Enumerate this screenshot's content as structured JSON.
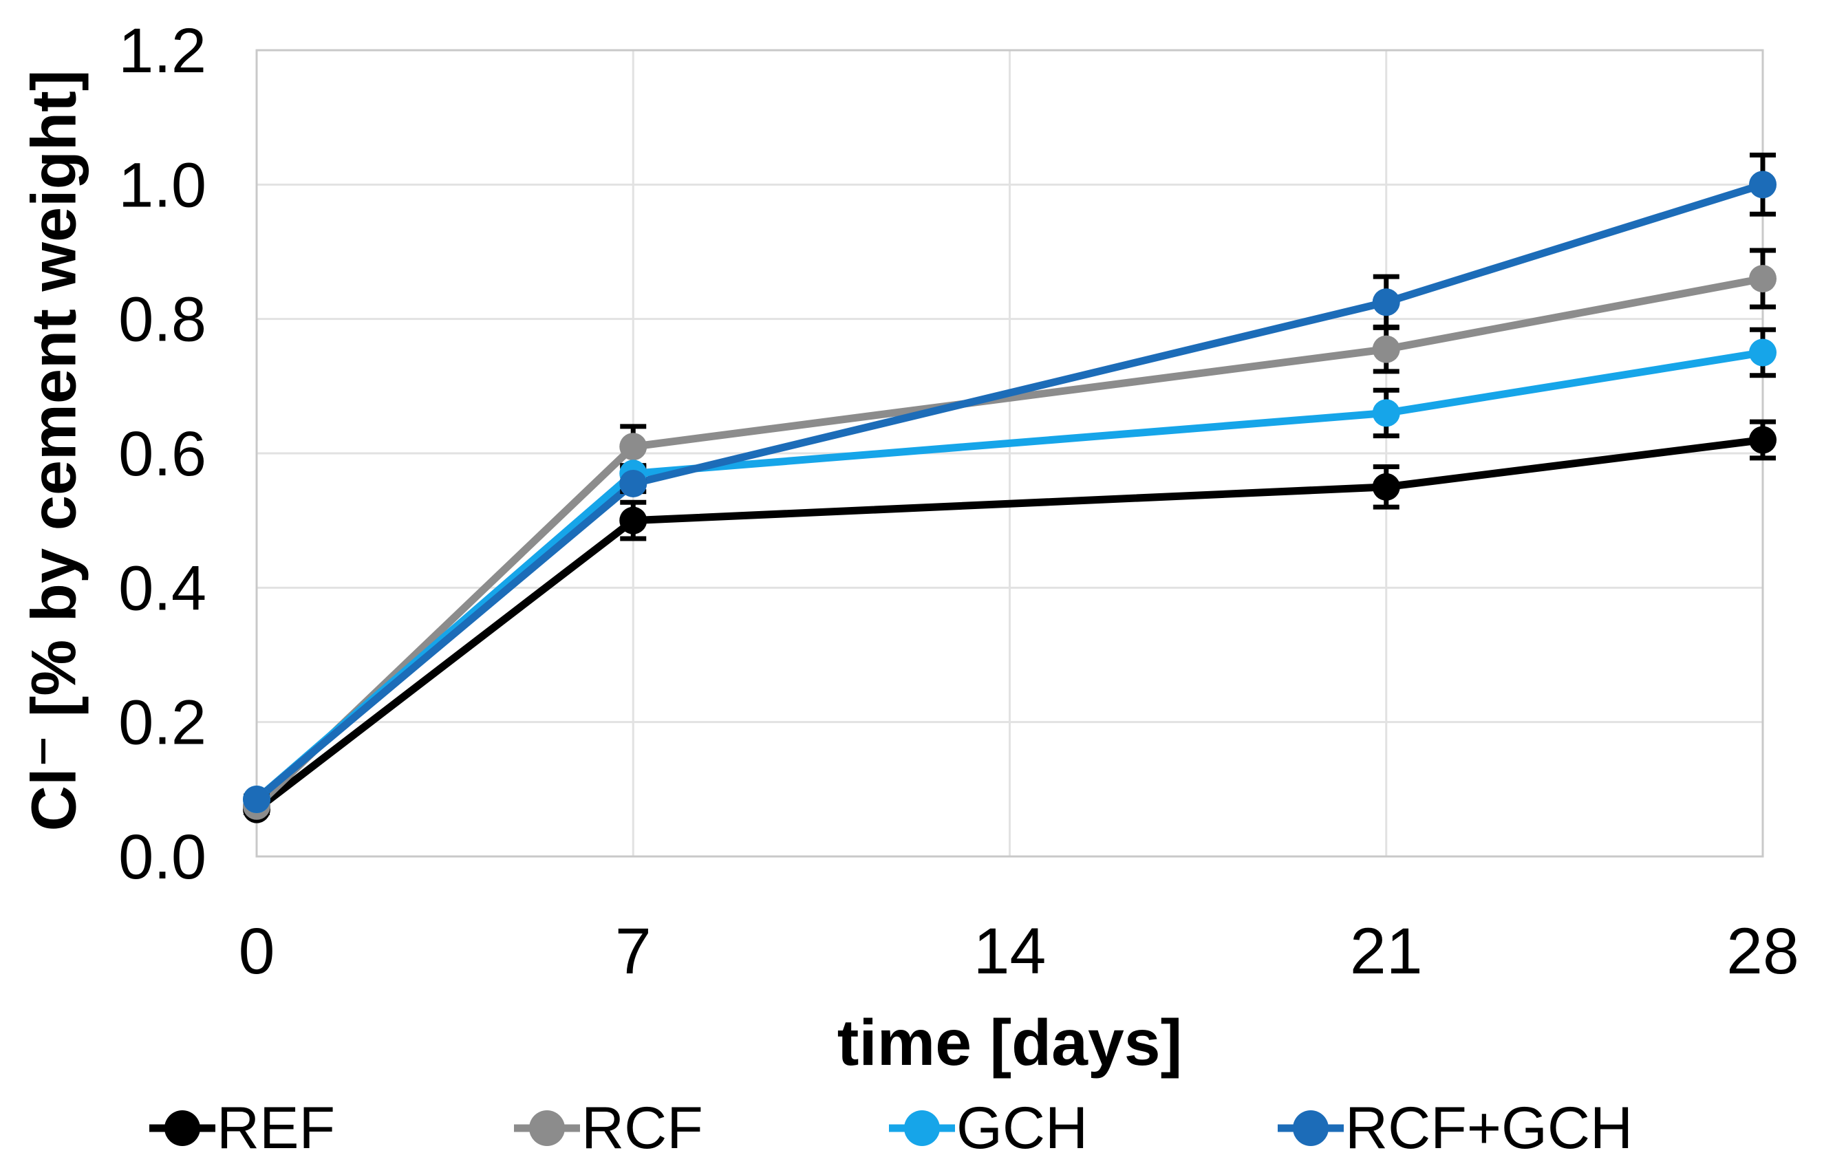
{
  "chart_data": {
    "type": "line",
    "title": "",
    "xlabel": "time [days]",
    "ylabel": "Cl⁻ [% by cement weight]",
    "xlim": [
      0,
      28
    ],
    "ylim": [
      0.0,
      1.2
    ],
    "x_ticks": [
      0,
      7,
      14,
      21,
      28
    ],
    "y_ticks": [
      0.0,
      0.2,
      0.4,
      0.6,
      0.8,
      1.0,
      1.2
    ],
    "grid": true,
    "legend_position": "bottom",
    "x": [
      0,
      7,
      21,
      28
    ],
    "series": [
      {
        "name": "REF",
        "color": "#000000",
        "values": [
          0.07,
          0.5,
          0.55,
          0.62
        ],
        "errors": [
          0.005,
          0.027,
          0.03,
          0.027
        ]
      },
      {
        "name": "RCF",
        "color": "#8c8c8c",
        "values": [
          0.075,
          0.61,
          0.755,
          0.86
        ],
        "errors": [
          0.005,
          0.03,
          0.033,
          0.042
        ]
      },
      {
        "name": "GCH",
        "color": "#16a5e9",
        "values": [
          0.085,
          0.57,
          0.66,
          0.75
        ],
        "errors": [
          0.005,
          0.012,
          0.034,
          0.034
        ]
      },
      {
        "name": "RCF+GCH",
        "color": "#1c6cb8",
        "values": [
          0.085,
          0.555,
          0.825,
          1.0
        ],
        "errors": [
          0.005,
          0.012,
          0.038,
          0.044
        ]
      }
    ],
    "colors": {
      "gridline": "#e2e2e2",
      "plot_border": "#c9c9c9",
      "error_bar": "#000000",
      "tick_text": "#000000"
    }
  },
  "legend": {
    "items": [
      {
        "label": "REF"
      },
      {
        "label": "RCF"
      },
      {
        "label": "GCH"
      },
      {
        "label": "RCF+GCH"
      }
    ]
  }
}
